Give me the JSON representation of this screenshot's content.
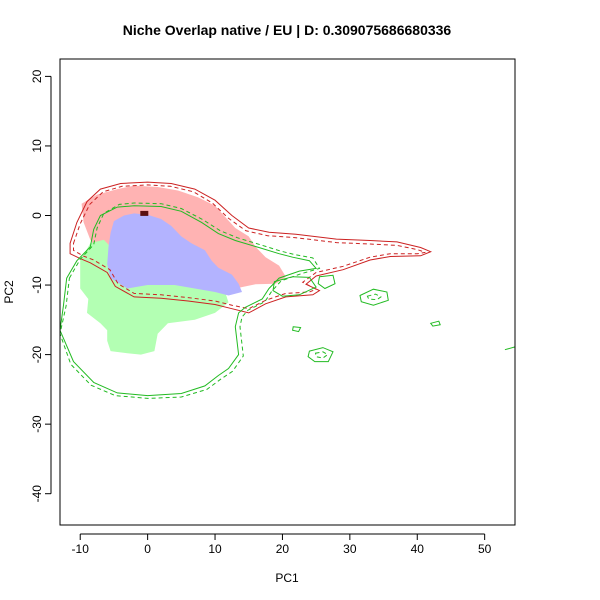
{
  "chart_data": {
    "type": "heatmap",
    "title": "Niche Overlap native / EU | D: 0.309075686680336",
    "xlabel": "PC1",
    "ylabel": "PC2",
    "xlim": [
      -13,
      54.5
    ],
    "ylim": [
      -44.5,
      22.5
    ],
    "xticks": [
      -10,
      0,
      10,
      20,
      30,
      40,
      50
    ],
    "yticks": [
      -40,
      -30,
      -20,
      -10,
      0,
      10,
      20
    ],
    "xtick_labels": [
      "-10",
      "0",
      "10",
      "20",
      "30",
      "40",
      "50"
    ],
    "ytick_labels": [
      "-40",
      "-30",
      "-20",
      "-10",
      "0",
      "10",
      "20"
    ],
    "grid": false,
    "colors": {
      "native_only": "#ffb3b3",
      "invaded_only": "#b3ffb3",
      "overlap": "#b3b3ff",
      "native_contour": "#cc2222",
      "invaded_contour": "#22bb22",
      "centroid": "#5a1010"
    },
    "regions": [
      {
        "id": "native_only",
        "points": [
          [
            -9.8,
            1.7
          ],
          [
            -7.5,
            3.0
          ],
          [
            -4.5,
            3.8
          ],
          [
            -2.0,
            4.3
          ],
          [
            1.5,
            4.1
          ],
          [
            4.5,
            3.6
          ],
          [
            7.5,
            2.6
          ],
          [
            10.0,
            1.4
          ],
          [
            11.5,
            -0.2
          ],
          [
            13.0,
            -1.8
          ],
          [
            15.0,
            -3.0
          ],
          [
            16.0,
            -4.5
          ],
          [
            17.5,
            -6.0
          ],
          [
            19.5,
            -7.2
          ],
          [
            20.5,
            -8.8
          ],
          [
            19.0,
            -9.8
          ],
          [
            16.0,
            -9.9
          ],
          [
            13.0,
            -10.5
          ],
          [
            11.0,
            -11.6
          ],
          [
            8.0,
            -11.2
          ],
          [
            4.0,
            -10.8
          ],
          [
            0.0,
            -10.6
          ],
          [
            -3.0,
            -10.0
          ],
          [
            -5.5,
            -8.0
          ],
          [
            -7.0,
            -6.0
          ],
          [
            -8.5,
            -3.5
          ],
          [
            -9.5,
            -1.0
          ]
        ]
      },
      {
        "id": "invaded_only",
        "points": [
          [
            -10.0,
            -6.5
          ],
          [
            -8.5,
            -4.0
          ],
          [
            -6.5,
            -3.5
          ],
          [
            -5.0,
            -5.0
          ],
          [
            -3.0,
            -6.5
          ],
          [
            0.0,
            -8.0
          ],
          [
            4.0,
            -9.0
          ],
          [
            8.0,
            -10.0
          ],
          [
            11.5,
            -11.0
          ],
          [
            12.0,
            -12.5
          ],
          [
            10.0,
            -14.0
          ],
          [
            7.0,
            -15.0
          ],
          [
            3.0,
            -15.5
          ],
          [
            1.5,
            -17.0
          ],
          [
            1.0,
            -19.5
          ],
          [
            -1.0,
            -20.0
          ],
          [
            -3.0,
            -19.8
          ],
          [
            -5.5,
            -19.5
          ],
          [
            -6.0,
            -18.0
          ],
          [
            -6.0,
            -16.5
          ],
          [
            -7.0,
            -15.5
          ],
          [
            -9.0,
            -14.0
          ],
          [
            -8.8,
            -12.0
          ],
          [
            -10.0,
            -10.5
          ]
        ]
      },
      {
        "id": "overlap",
        "points": [
          [
            -5.0,
            -0.8
          ],
          [
            -3.5,
            0.0
          ],
          [
            -2.0,
            0.3
          ],
          [
            0.0,
            0.1
          ],
          [
            2.0,
            -0.5
          ],
          [
            3.5,
            -1.5
          ],
          [
            5.0,
            -3.0
          ],
          [
            6.5,
            -4.0
          ],
          [
            8.5,
            -5.0
          ],
          [
            9.5,
            -6.5
          ],
          [
            10.5,
            -7.5
          ],
          [
            12.5,
            -8.5
          ],
          [
            13.5,
            -9.8
          ],
          [
            14.0,
            -11.0
          ],
          [
            12.0,
            -11.5
          ],
          [
            10.0,
            -11.0
          ],
          [
            7.0,
            -10.5
          ],
          [
            4.0,
            -10.0
          ],
          [
            0.0,
            -10.0
          ],
          [
            -3.0,
            -10.5
          ],
          [
            -5.5,
            -9.0
          ],
          [
            -6.0,
            -7.0
          ],
          [
            -5.8,
            -4.5
          ],
          [
            -5.5,
            -2.5
          ]
        ]
      }
    ],
    "centroid": [
      -0.5,
      0.3
    ],
    "contours": [
      {
        "group": "native",
        "style": "solid",
        "closed": true,
        "points": [
          [
            -11.5,
            -4.0
          ],
          [
            -10.5,
            -1.0
          ],
          [
            -9.0,
            2.0
          ],
          [
            -7.0,
            3.8
          ],
          [
            -4.0,
            4.6
          ],
          [
            0.0,
            4.8
          ],
          [
            3.5,
            4.6
          ],
          [
            7.0,
            3.8
          ],
          [
            10.0,
            2.2
          ],
          [
            12.5,
            0.0
          ],
          [
            15.0,
            -1.8
          ],
          [
            18.0,
            -2.4
          ],
          [
            22.0,
            -2.7
          ],
          [
            28.0,
            -3.4
          ],
          [
            33.0,
            -3.6
          ],
          [
            37.0,
            -3.8
          ],
          [
            40.5,
            -4.6
          ],
          [
            42.0,
            -5.2
          ],
          [
            40.5,
            -5.8
          ],
          [
            36.0,
            -5.9
          ],
          [
            33.0,
            -6.4
          ],
          [
            29.0,
            -7.8
          ],
          [
            25.0,
            -8.7
          ],
          [
            23.5,
            -9.9
          ],
          [
            25.5,
            -10.8
          ],
          [
            24.5,
            -11.4
          ],
          [
            20.5,
            -11.7
          ],
          [
            17.5,
            -12.7
          ],
          [
            15.0,
            -14.0
          ],
          [
            12.5,
            -13.4
          ],
          [
            10.0,
            -12.8
          ],
          [
            6.0,
            -12.3
          ],
          [
            2.0,
            -11.9
          ],
          [
            -2.0,
            -11.7
          ],
          [
            -4.8,
            -10.2
          ],
          [
            -6.0,
            -8.2
          ],
          [
            -8.5,
            -6.8
          ],
          [
            -10.0,
            -6.2
          ],
          [
            -11.5,
            -5.5
          ]
        ]
      },
      {
        "group": "native",
        "style": "dashed",
        "closed": true,
        "points": [
          [
            -11.0,
            -4.0
          ],
          [
            -10.0,
            -1.2
          ],
          [
            -8.6,
            1.6
          ],
          [
            -6.6,
            3.4
          ],
          [
            -3.8,
            4.2
          ],
          [
            0.0,
            4.4
          ],
          [
            3.4,
            4.2
          ],
          [
            6.8,
            3.4
          ],
          [
            9.6,
            1.8
          ],
          [
            12.0,
            -0.4
          ],
          [
            14.6,
            -2.2
          ],
          [
            17.8,
            -2.9
          ],
          [
            22.0,
            -3.2
          ],
          [
            28.0,
            -3.9
          ],
          [
            33.0,
            -4.1
          ],
          [
            37.0,
            -4.3
          ],
          [
            40.0,
            -4.9
          ],
          [
            41.2,
            -5.3
          ],
          [
            40.0,
            -5.5
          ],
          [
            36.0,
            -5.5
          ],
          [
            33.0,
            -6.0
          ],
          [
            29.0,
            -7.3
          ],
          [
            25.0,
            -8.2
          ],
          [
            23.0,
            -9.6
          ],
          [
            25.0,
            -10.6
          ],
          [
            24.0,
            -11.0
          ],
          [
            20.5,
            -11.2
          ],
          [
            17.5,
            -12.2
          ],
          [
            15.0,
            -13.4
          ],
          [
            12.5,
            -12.9
          ],
          [
            10.0,
            -12.3
          ],
          [
            6.0,
            -11.8
          ],
          [
            2.0,
            -11.4
          ],
          [
            -2.0,
            -11.2
          ],
          [
            -4.4,
            -9.8
          ],
          [
            -5.6,
            -7.8
          ],
          [
            -8.0,
            -6.4
          ],
          [
            -9.6,
            -5.8
          ],
          [
            -11.0,
            -5.0
          ]
        ]
      },
      {
        "group": "invaded",
        "style": "solid",
        "closed": true,
        "points": [
          [
            -12.0,
            -9.0
          ],
          [
            -10.5,
            -6.5
          ],
          [
            -8.5,
            -4.5
          ],
          [
            -8.0,
            -2.0
          ],
          [
            -7.0,
            0.0
          ],
          [
            -4.5,
            1.2
          ],
          [
            -2.0,
            1.4
          ],
          [
            2.0,
            1.3
          ],
          [
            5.0,
            0.6
          ],
          [
            8.0,
            -1.0
          ],
          [
            10.5,
            -2.6
          ],
          [
            13.0,
            -3.6
          ],
          [
            16.5,
            -4.6
          ],
          [
            19.5,
            -5.5
          ],
          [
            21.5,
            -6.0
          ],
          [
            24.0,
            -6.5
          ],
          [
            25.0,
            -7.6
          ],
          [
            22.5,
            -8.0
          ],
          [
            19.5,
            -9.0
          ],
          [
            18.0,
            -10.5
          ],
          [
            17.0,
            -12.0
          ],
          [
            14.5,
            -13.2
          ],
          [
            13.5,
            -14.0
          ],
          [
            13.0,
            -16.0
          ],
          [
            13.5,
            -20.0
          ],
          [
            12.0,
            -22.0
          ],
          [
            10.5,
            -23.0
          ],
          [
            8.5,
            -24.5
          ],
          [
            5.0,
            -25.6
          ],
          [
            0.0,
            -25.9
          ],
          [
            -4.5,
            -25.5
          ],
          [
            -8.0,
            -24.0
          ],
          [
            -11.0,
            -21.0
          ],
          [
            -13.0,
            -16.5
          ],
          [
            -12.5,
            -13.0
          ]
        ]
      },
      {
        "group": "invaded",
        "style": "dashed",
        "closed": true,
        "points": [
          [
            -11.6,
            -9.0
          ],
          [
            -10.0,
            -6.3
          ],
          [
            -8.0,
            -4.2
          ],
          [
            -7.5,
            -1.8
          ],
          [
            -6.5,
            0.3
          ],
          [
            -4.2,
            1.6
          ],
          [
            -2.0,
            1.8
          ],
          [
            2.0,
            1.7
          ],
          [
            5.0,
            1.0
          ],
          [
            8.2,
            -0.6
          ],
          [
            10.8,
            -2.2
          ],
          [
            13.3,
            -3.2
          ],
          [
            16.7,
            -4.2
          ],
          [
            19.7,
            -5.1
          ],
          [
            21.7,
            -5.6
          ],
          [
            24.5,
            -6.1
          ],
          [
            25.5,
            -7.6
          ],
          [
            22.7,
            -8.4
          ],
          [
            19.8,
            -9.4
          ],
          [
            18.4,
            -10.9
          ],
          [
            17.4,
            -12.4
          ],
          [
            14.9,
            -13.6
          ],
          [
            14.0,
            -14.6
          ],
          [
            13.7,
            -16.0
          ],
          [
            14.2,
            -20.2
          ],
          [
            12.6,
            -22.4
          ],
          [
            10.9,
            -23.5
          ],
          [
            8.8,
            -25.0
          ],
          [
            5.0,
            -26.1
          ],
          [
            0.0,
            -26.3
          ],
          [
            -4.8,
            -25.9
          ],
          [
            -8.4,
            -24.4
          ],
          [
            -11.4,
            -21.4
          ],
          [
            -13.0,
            -17.0
          ],
          [
            -12.1,
            -13.0
          ]
        ]
      },
      {
        "group": "invaded",
        "style": "solid",
        "closed": true,
        "points": [
          [
            18.8,
            -9.5
          ],
          [
            21.5,
            -8.8
          ],
          [
            24.0,
            -8.9
          ],
          [
            25.0,
            -10.3
          ],
          [
            22.5,
            -11.4
          ],
          [
            20.0,
            -11.6
          ],
          [
            18.6,
            -10.8
          ]
        ]
      },
      {
        "group": "invaded",
        "style": "solid",
        "closed": true,
        "points": [
          [
            25.5,
            -8.8
          ],
          [
            27.5,
            -8.6
          ],
          [
            27.8,
            -9.8
          ],
          [
            26.3,
            -10.5
          ],
          [
            25.3,
            -9.8
          ]
        ]
      },
      {
        "group": "invaded",
        "style": "solid",
        "closed": true,
        "points": [
          [
            31.5,
            -11.5
          ],
          [
            33.5,
            -10.6
          ],
          [
            35.5,
            -11.0
          ],
          [
            35.7,
            -12.2
          ],
          [
            33.5,
            -12.9
          ],
          [
            31.7,
            -12.4
          ]
        ]
      },
      {
        "group": "invaded",
        "style": "dashed",
        "closed": true,
        "points": [
          [
            32.6,
            -11.6
          ],
          [
            33.8,
            -11.3
          ],
          [
            34.6,
            -11.7
          ],
          [
            34.0,
            -12.1
          ],
          [
            32.8,
            -12.0
          ]
        ]
      },
      {
        "group": "invaded",
        "style": "solid",
        "closed": true,
        "points": [
          [
            24.0,
            -19.5
          ],
          [
            26.0,
            -19.0
          ],
          [
            27.5,
            -19.6
          ],
          [
            26.8,
            -21.0
          ],
          [
            24.8,
            -21.0
          ],
          [
            23.8,
            -20.3
          ]
        ]
      },
      {
        "group": "invaded",
        "style": "dashed",
        "closed": true,
        "points": [
          [
            24.9,
            -19.8
          ],
          [
            26.0,
            -19.6
          ],
          [
            26.7,
            -20.0
          ],
          [
            26.0,
            -20.5
          ],
          [
            25.0,
            -20.3
          ]
        ]
      },
      {
        "group": "invaded",
        "style": "solid",
        "closed": true,
        "points": [
          [
            21.6,
            -16.0
          ],
          [
            22.7,
            -16.1
          ],
          [
            22.4,
            -16.7
          ],
          [
            21.5,
            -16.5
          ]
        ]
      },
      {
        "group": "invaded",
        "style": "solid",
        "closed": true,
        "points": [
          [
            42.0,
            -15.5
          ],
          [
            43.2,
            -15.2
          ],
          [
            43.4,
            -15.7
          ],
          [
            42.3,
            -15.9
          ]
        ]
      },
      {
        "group": "invaded",
        "style": "solid",
        "closed": false,
        "points": [
          [
            53.0,
            -19.3
          ],
          [
            54.5,
            -18.9
          ]
        ]
      }
    ]
  }
}
